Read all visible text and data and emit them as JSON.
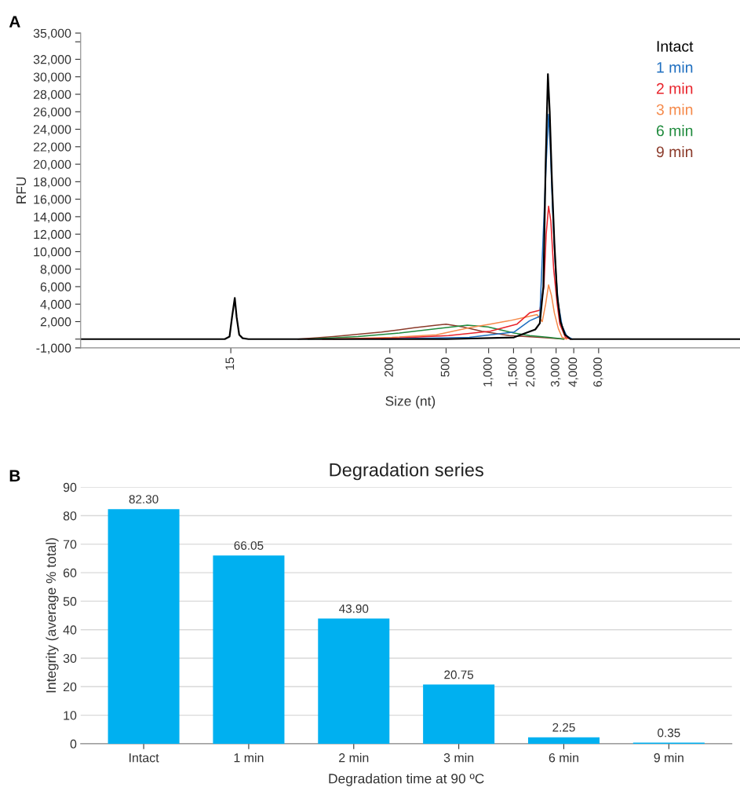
{
  "chart_data": [
    {
      "type": "line",
      "xlabel": "Size (nt)",
      "ylabel": "RFU",
      "annotations": [
        "A"
      ],
      "log": "x",
      "legend": "top right",
      "grid": false,
      "marker": "none",
      "line_style": "solid",
      "xlim": [
        1.3,
        60000
      ],
      "ylim": [
        -1000,
        35000
      ],
      "xticks": [
        15,
        200,
        500,
        {
          "value": 1000,
          "label": "1,000"
        },
        {
          "value": 1500,
          "label": "1,500"
        },
        {
          "value": 2000,
          "label": "2,000"
        },
        {
          "value": 3000,
          "label": "3,000"
        },
        {
          "value": 4000,
          "label": "4,000"
        },
        {
          "value": 6000,
          "label": "6,000"
        }
      ],
      "yticks": [
        {
          "value": -1000,
          "label": "-1,000"
        },
        {
          "value": 0,
          "label": null
        },
        {
          "value": 2000,
          "label": "2,000"
        },
        {
          "value": 4000,
          "label": "4,000"
        },
        {
          "value": 6000,
          "label": "6,000"
        },
        {
          "value": 8000,
          "label": "8,000"
        },
        {
          "value": 10000,
          "label": "10,000"
        },
        {
          "value": 12000,
          "label": "12,000"
        },
        {
          "value": 14000,
          "label": "14,000"
        },
        {
          "value": 16000,
          "label": "16,000"
        },
        {
          "value": 18000,
          "label": "18,000"
        },
        {
          "value": 20000,
          "label": "20,000"
        },
        {
          "value": 22000,
          "label": "22,000"
        },
        {
          "value": 24000,
          "label": "24,000"
        },
        {
          "value": 26000,
          "label": "26,000"
        },
        {
          "value": 28000,
          "label": "28,000"
        },
        {
          "value": 30000,
          "label": "30,000"
        },
        {
          "value": 32000,
          "label": "32,000"
        },
        {
          "value": 34000,
          "label": null
        },
        {
          "value": 35000,
          "label": "35,000"
        }
      ],
      "series": [
        {
          "name": "9 min",
          "color": "#8b3a2a",
          "x": [
            45,
            80,
            175,
            298,
            428,
            500,
            658,
            894,
            1400,
            2301,
            3405
          ],
          "values": [
            0,
            300,
            800,
            1300,
            1600,
            1700,
            1400,
            900,
            400,
            200,
            0
          ]
        },
        {
          "name": "6 min",
          "color": "#1e8a3c",
          "x": [
            53,
            119,
            234,
            428,
            707,
            990,
            1511,
            1950,
            2655,
            3405
          ],
          "values": [
            0,
            300,
            700,
            1200,
            1600,
            1400,
            700,
            400,
            200,
            0
          ]
        },
        {
          "name": "3 min",
          "color": "#f58a4b",
          "x": [
            80,
            207,
            428,
            729,
            1023,
            1400,
            1807,
            2199,
            2393,
            2531,
            2655,
            2782,
            2917,
            3112,
            3311,
            3558
          ],
          "values": [
            0,
            200,
            500,
            1300,
            1700,
            2100,
            2500,
            2800,
            2000,
            4000,
            6200,
            5000,
            3000,
            1200,
            200,
            0
          ]
        },
        {
          "name": "2 min",
          "color": "#e8222a",
          "x": [
            67,
            207,
            521,
            1023,
            1582,
            1950,
            2301,
            2461,
            2553,
            2655,
            2754,
            2884,
            3054,
            3190,
            3493,
            3793
          ],
          "values": [
            0,
            100,
            400,
            900,
            1700,
            3000,
            3300,
            6000,
            12000,
            15200,
            13500,
            8000,
            4000,
            1700,
            200,
            0
          ]
        },
        {
          "name": "1 min",
          "color": "#1f6fc0",
          "x": [
            175,
            729,
            1511,
            1950,
            2301,
            2553,
            2655,
            2729,
            2831,
            2972,
            3112,
            3311,
            3558,
            3894
          ],
          "values": [
            0,
            200,
            800,
            2100,
            2600,
            20000,
            25700,
            22000,
            15000,
            8000,
            4000,
            1500,
            400,
            0
          ]
        },
        {
          "name": "Intact",
          "color": "#000000",
          "x": [
            1.3,
            13.6,
            14.7,
            15.3,
            16,
            16.5,
            17.2,
            18.2,
            20,
            500,
            1511,
            2138,
            2301,
            2440,
            2531,
            2626,
            2704,
            2805,
            2917,
            3054,
            3221,
            3467,
            3793,
            60000
          ],
          "values": [
            0,
            0,
            300,
            2500,
            4700,
            2500,
            500,
            100,
            0,
            0,
            200,
            1100,
            1800,
            6000,
            20000,
            30300,
            26000,
            18000,
            11000,
            5000,
            2000,
            500,
            0,
            0
          ]
        }
      ]
    },
    {
      "type": "bar",
      "title": "Degradation series",
      "xlabel": "Degradation time at 90 ºC",
      "ylabel": "Integrity (average % total)",
      "annotations": [
        "B"
      ],
      "grid": "y",
      "categories": [
        "Intact",
        "1 min",
        "2 min",
        "3 min",
        "6 min",
        "9 min"
      ],
      "values": [
        82.3,
        66.05,
        43.9,
        20.75,
        2.25,
        0.35
      ],
      "value_labels": [
        "82.30",
        "66.05",
        "43.90",
        "20.75",
        "2.25",
        "0.35"
      ],
      "color": "#00b0f0",
      "ylim": [
        0,
        90
      ],
      "yticks": [
        0,
        10,
        20,
        30,
        40,
        50,
        60,
        70,
        80,
        90
      ]
    }
  ]
}
